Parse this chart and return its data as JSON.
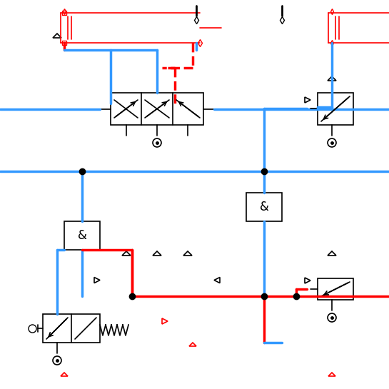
{
  "bg_color": "#ffffff",
  "blue": "#3399ff",
  "red": "#ff0000",
  "black": "#000000",
  "lw_pipe": 2.5,
  "lw_comp": 1.2,
  "fig_size": [
    5.45,
    5.45
  ],
  "dpi": 100
}
